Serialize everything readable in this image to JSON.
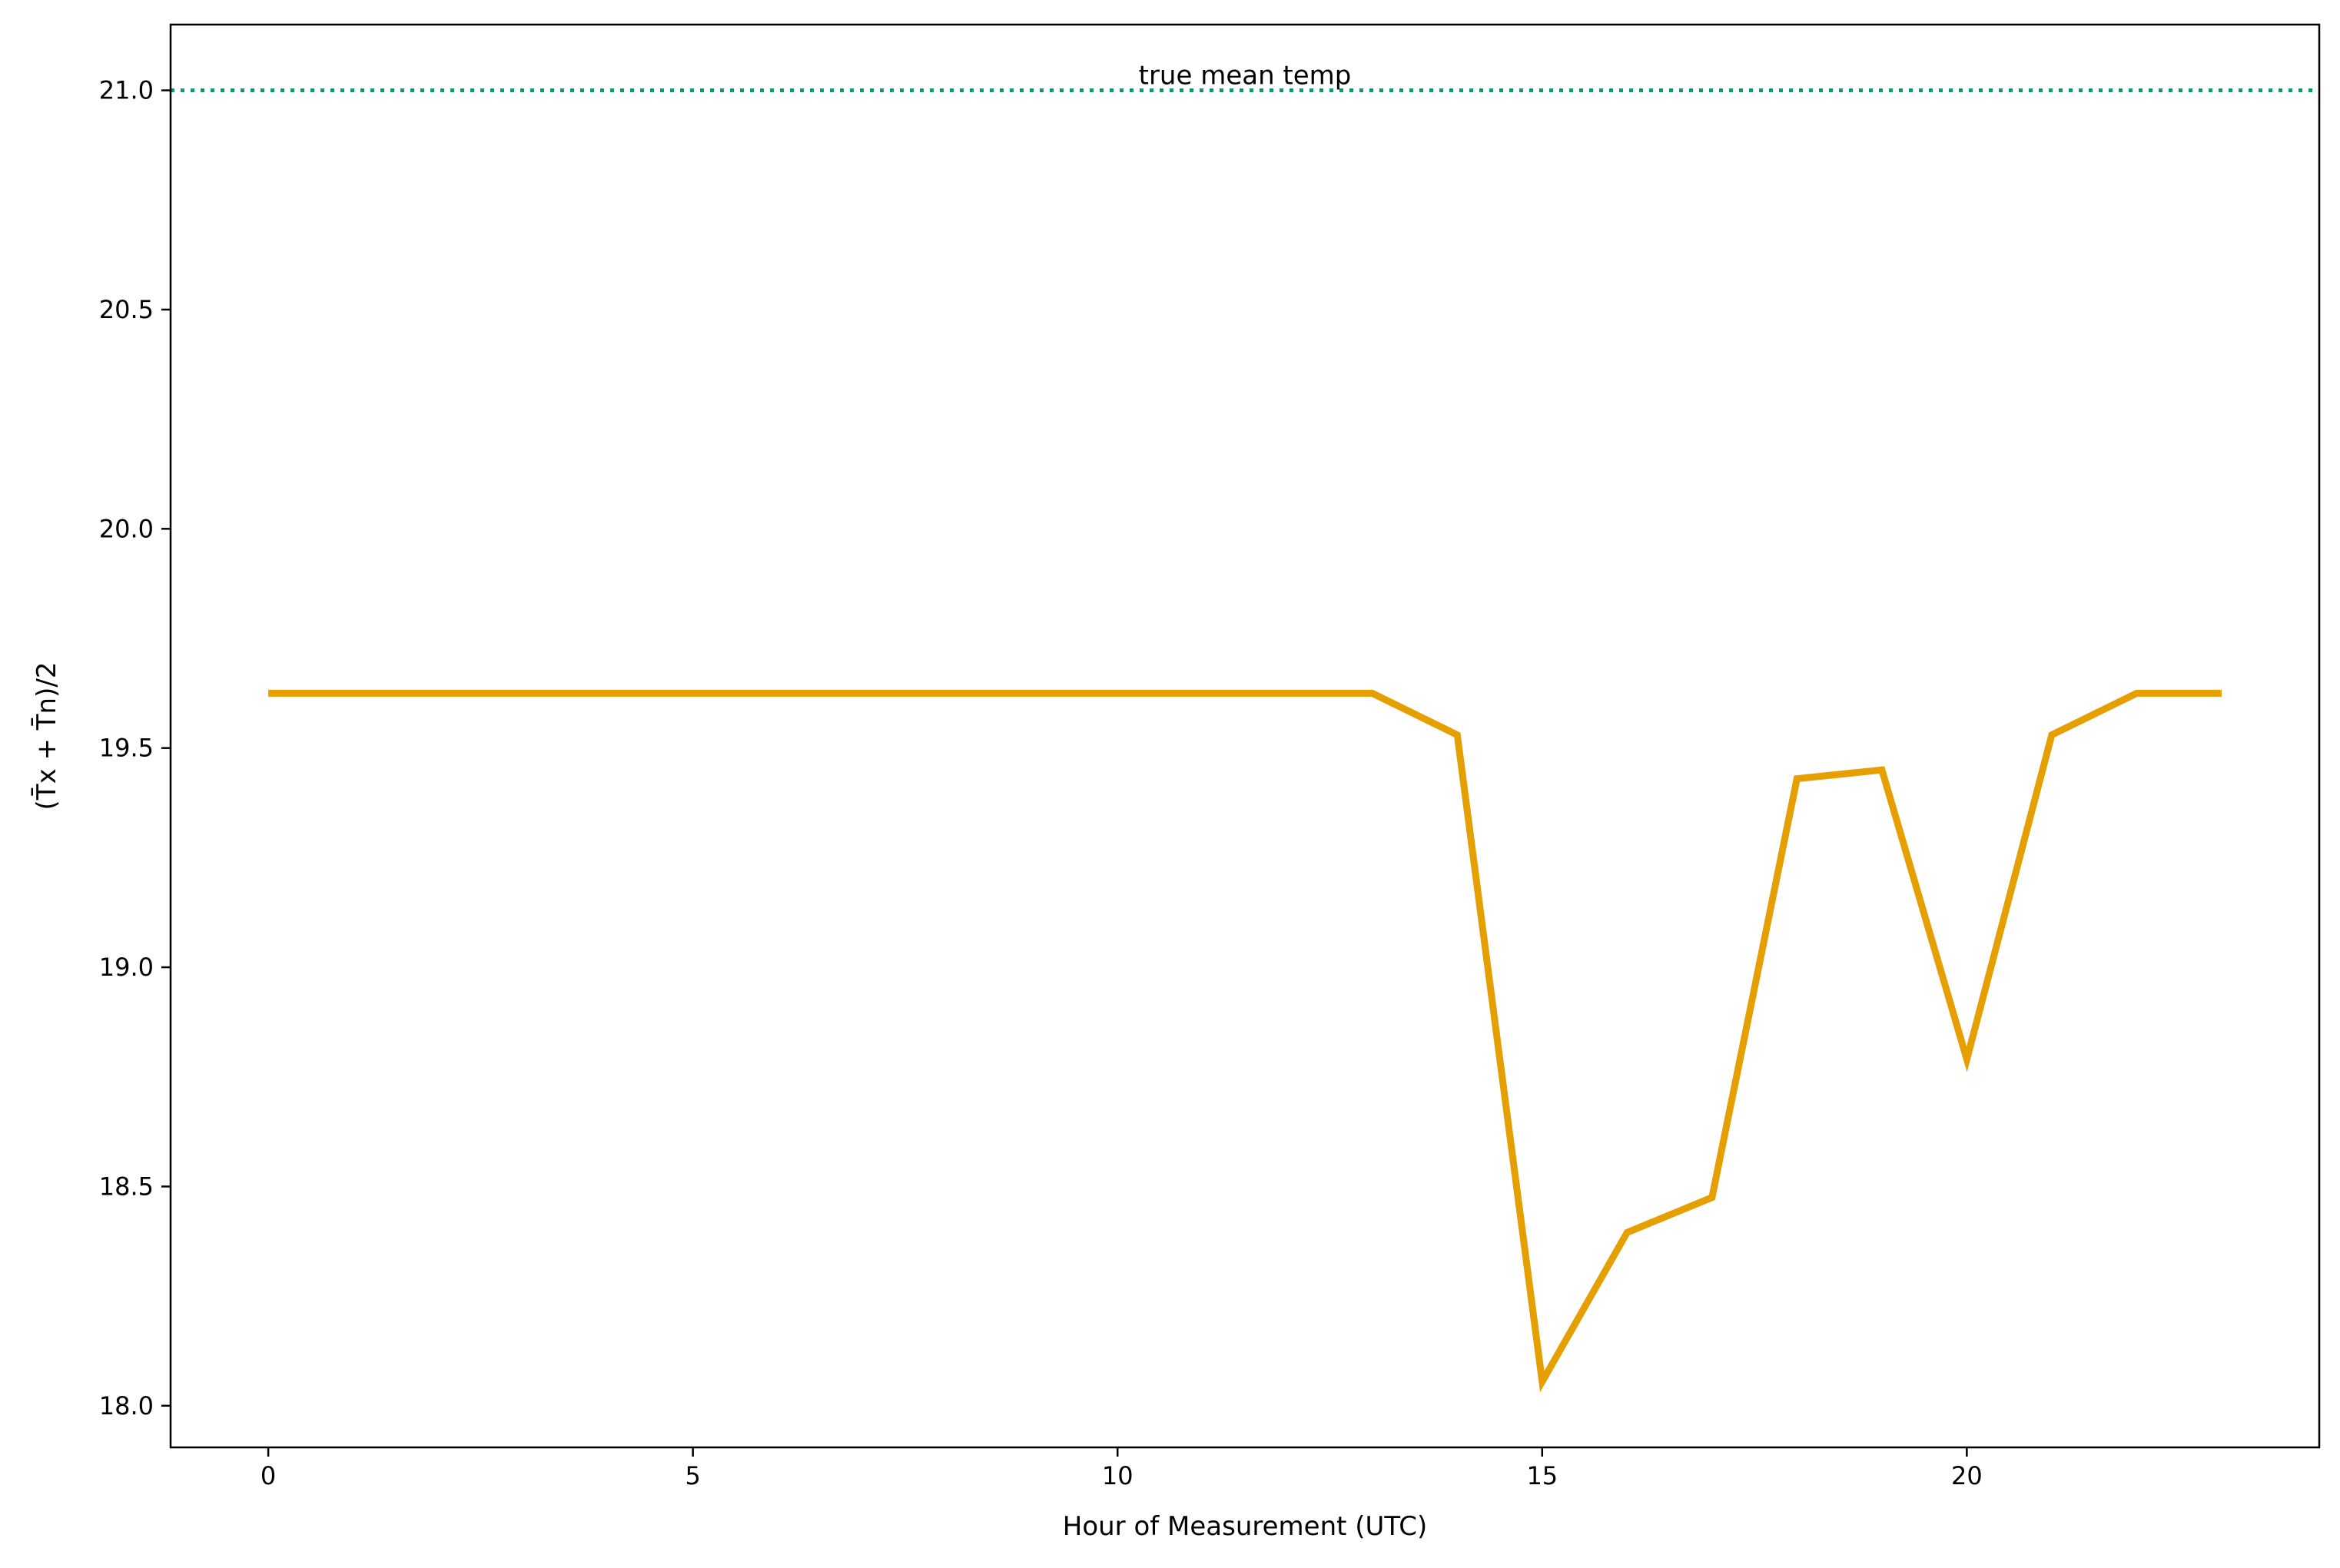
{
  "chart_data": {
    "type": "line",
    "title": "",
    "xlabel": "Hour of Measurement (UTC)",
    "ylabel": "(T̄x + T̄n)/2",
    "xlim": [
      -1.15,
      24.15
    ],
    "ylim": [
      17.905,
      21.15
    ],
    "x_ticks": [
      0,
      5,
      10,
      15,
      20
    ],
    "x_tick_labels": [
      "0",
      "5",
      "10",
      "15",
      "20"
    ],
    "y_ticks": [
      18.0,
      18.5,
      19.0,
      19.5,
      20.0,
      20.5,
      21.0
    ],
    "y_tick_labels": [
      "18.0",
      "18.5",
      "19.0",
      "19.5",
      "20.0",
      "20.5",
      "21.0"
    ],
    "grid": false,
    "series": [
      {
        "color": "#E69F00",
        "x": [
          0,
          1,
          2,
          3,
          4,
          5,
          6,
          7,
          8,
          9,
          10,
          11,
          12,
          13,
          14,
          15,
          16,
          17,
          18,
          19,
          20,
          21,
          22,
          23
        ],
        "values": [
          19.625,
          19.625,
          19.625,
          19.625,
          19.625,
          19.625,
          19.625,
          19.625,
          19.625,
          19.625,
          19.625,
          19.625,
          19.625,
          19.625,
          19.53,
          18.055,
          18.395,
          18.475,
          19.43,
          19.45,
          18.79,
          19.53,
          19.625,
          19.625
        ]
      }
    ],
    "reference_line": {
      "y": 21.0,
      "label": "true mean temp",
      "color": "#009E73",
      "style": "dotted"
    }
  }
}
